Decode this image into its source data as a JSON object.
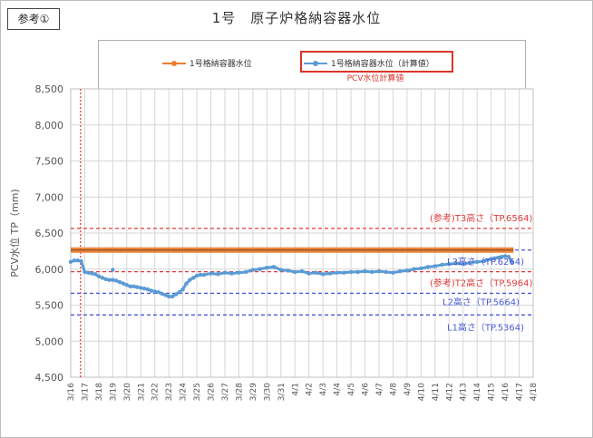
{
  "page": {
    "ref_label": "参考①"
  },
  "chart_data": {
    "type": "line",
    "title": "1号　原子炉格納容器水位",
    "ylabel": "PCV水位 TP（mm)",
    "xlabel": "",
    "ylim": [
      4500,
      8500
    ],
    "yticks": [
      4500,
      5000,
      5500,
      6000,
      6500,
      7000,
      7500,
      8000,
      8500
    ],
    "ytick_labels": [
      "4,500",
      "5,000",
      "5,500",
      "6,000",
      "6,500",
      "7,000",
      "7,500",
      "8,000",
      "8,500"
    ],
    "x_categories": [
      "3/16",
      "3/17",
      "3/18",
      "3/19",
      "3/20",
      "3/21",
      "3/22",
      "3/23",
      "3/24",
      "3/25",
      "3/26",
      "3/27",
      "3/28",
      "3/29",
      "3/30",
      "3/31",
      "4/1",
      "4/2",
      "4/3",
      "4/4",
      "4/5",
      "4/6",
      "4/7",
      "4/8",
      "4/9",
      "4/10",
      "4/11",
      "4/12",
      "4/13",
      "4/14",
      "4/15",
      "4/16",
      "4/17",
      "4/18"
    ],
    "legend": [
      {
        "name": "1号格納容器水位",
        "color": "#ed7d31",
        "highlight": false
      },
      {
        "name": "1号格納容器水位（計算値）",
        "color": "#5b9bd5",
        "highlight": true
      }
    ],
    "legend_note": "PCV水位計算値",
    "event_line": {
      "x_day": 0.7,
      "color": "#d9362b"
    },
    "series": [
      {
        "name": "1号格納容器水位",
        "color": "#ed7d31",
        "x_days": [
          0,
          31.6
        ],
        "values": [
          6264,
          6264
        ]
      },
      {
        "name": "1号格納容器水位（計算値）",
        "color": "#5b9bd5",
        "x_days": [
          0,
          0.25,
          0.5,
          0.75,
          1.0,
          1.25,
          1.5,
          1.75,
          2.0,
          2.25,
          2.5,
          2.75,
          3.0,
          3.25,
          3.5,
          3.75,
          4.0,
          4.25,
          4.5,
          4.75,
          5.0,
          5.25,
          5.5,
          5.75,
          6.0,
          6.25,
          6.5,
          6.75,
          7.0,
          7.25,
          7.5,
          7.75,
          8.0,
          8.25,
          8.5,
          8.75,
          9.0,
          9.25,
          9.5,
          10.0,
          10.5,
          11.0,
          11.5,
          12.0,
          12.5,
          13.0,
          13.5,
          14.0,
          14.5,
          15.0,
          15.5,
          16.0,
          16.5,
          17.0,
          17.5,
          18.0,
          18.5,
          19.0,
          19.5,
          20.0,
          20.5,
          21.0,
          21.5,
          22.0,
          22.5,
          23.0,
          23.5,
          24.0,
          24.5,
          25.0,
          25.5,
          26.0,
          26.5,
          27.0,
          27.5,
          28.0,
          28.5,
          29.0,
          29.5,
          30.0,
          30.25,
          30.5,
          30.75,
          31.0,
          31.25,
          31.5
        ],
        "values": [
          6100,
          6120,
          6120,
          6110,
          5960,
          5950,
          5940,
          5930,
          5900,
          5880,
          5860,
          5850,
          5850,
          5840,
          5820,
          5800,
          5780,
          5760,
          5760,
          5750,
          5740,
          5730,
          5720,
          5700,
          5690,
          5680,
          5660,
          5640,
          5620,
          5620,
          5650,
          5680,
          5720,
          5800,
          5850,
          5880,
          5910,
          5920,
          5920,
          5940,
          5930,
          5950,
          5940,
          5950,
          5960,
          5990,
          6000,
          6020,
          6030,
          5990,
          5980,
          5960,
          5970,
          5940,
          5950,
          5930,
          5940,
          5950,
          5950,
          5960,
          5960,
          5970,
          5960,
          5970,
          5960,
          5950,
          5970,
          5980,
          6000,
          6010,
          6030,
          6040,
          6060,
          6070,
          6080,
          6070,
          6090,
          6100,
          6110,
          6140,
          6150,
          6160,
          6170,
          6180,
          6170,
          6100
        ]
      }
    ],
    "reference_lines": [
      {
        "label": "(参考)T3高さ（TP.6564)",
        "value": 6564,
        "color": "#e03c3c"
      },
      {
        "label": "L3高さ（TP.6264)",
        "value": 6264,
        "color": "#4a5ad6"
      },
      {
        "label": "(参考)T2高さ（TP.5964)",
        "value": 5964,
        "color": "#e03c3c"
      },
      {
        "label": "L2高さ（TP.5664)",
        "value": 5664,
        "color": "#4a5ad6"
      },
      {
        "label": "L1高さ（TP.5364)",
        "value": 5364,
        "color": "#4a5ad6"
      }
    ]
  }
}
